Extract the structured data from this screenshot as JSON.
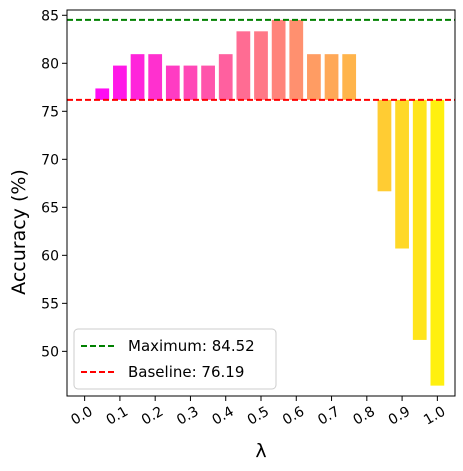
{
  "chart_data": {
    "type": "bar",
    "x": [
      0.0,
      0.05,
      0.1,
      0.15,
      0.2,
      0.25,
      0.3,
      0.35,
      0.4,
      0.45,
      0.5,
      0.55,
      0.6,
      0.65,
      0.7,
      0.75,
      0.8,
      0.85,
      0.9,
      0.95,
      1.0
    ],
    "bar_bottom": 76.19,
    "values": [
      null,
      77.38,
      79.76,
      80.95,
      80.95,
      79.76,
      79.76,
      79.76,
      80.95,
      83.33,
      83.33,
      84.52,
      84.52,
      80.95,
      80.95,
      80.95,
      null,
      66.67,
      60.71,
      51.19,
      46.43
    ],
    "bar_colors": [
      "#ff00ff",
      "#ff0cf3",
      "#ff18e7",
      "#ff24db",
      "#ff30cf",
      "#ff3cc3",
      "#ff48b7",
      "#ff54ab",
      "#ff609f",
      "#ff6c93",
      "#ff7887",
      "#ff847b",
      "#ff906f",
      "#ff9c63",
      "#ffa857",
      "#ffb44b",
      "#ffc03f",
      "#ffcc33",
      "#ffd827",
      "#ffe41b",
      "#fff00f"
    ],
    "xticks": [
      "0.0",
      "0.1",
      "0.2",
      "0.3",
      "0.4",
      "0.5",
      "0.6",
      "0.7",
      "0.8",
      "0.9",
      "1.0"
    ],
    "xtick_values": [
      0.0,
      0.1,
      0.2,
      0.3,
      0.4,
      0.5,
      0.6,
      0.7,
      0.8,
      0.9,
      1.0
    ],
    "yticks": [
      "50",
      "55",
      "60",
      "65",
      "70",
      "75",
      "80",
      "85"
    ],
    "ytick_values": [
      50,
      55,
      60,
      65,
      70,
      75,
      80,
      85
    ],
    "xlim": [
      -0.05,
      1.05
    ],
    "ylim": [
      45.35,
      85.55
    ],
    "xlabel": "λ",
    "ylabel": "Accuracy (%)",
    "lines": [
      {
        "label": "Maximum: 84.52",
        "value": 84.52,
        "color": "#008000",
        "style": "dashed"
      },
      {
        "label": "Baseline: 76.19",
        "value": 76.19,
        "color": "#ff0000",
        "style": "dashed"
      }
    ],
    "legend_position": "lower-left",
    "grid": false
  }
}
